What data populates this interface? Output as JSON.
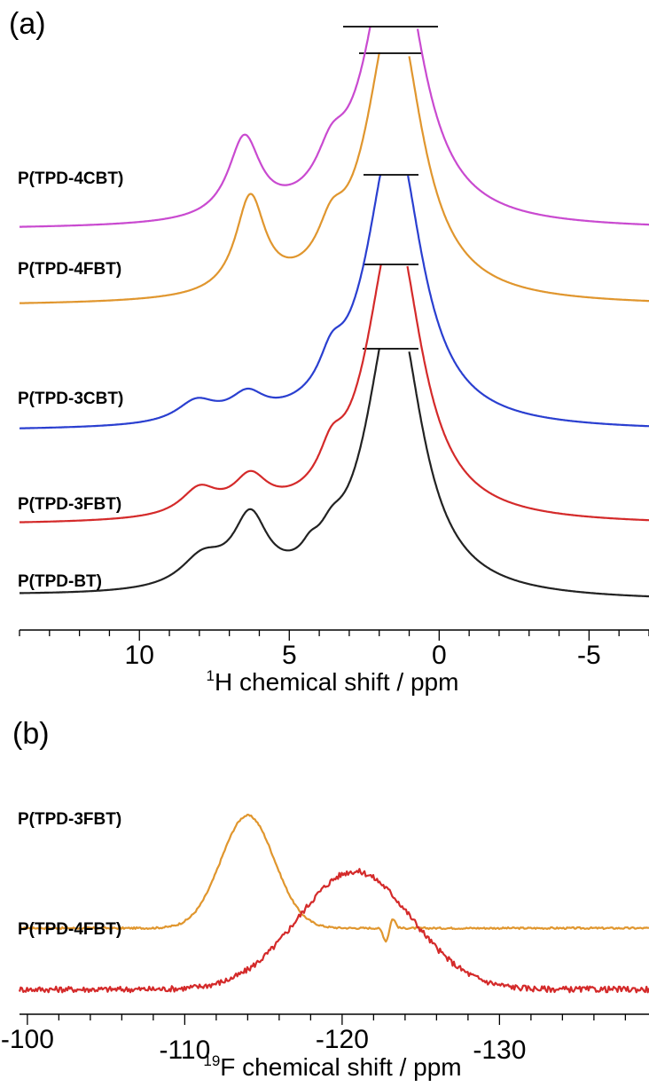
{
  "chart_data": [
    {
      "panel": "(a)",
      "type": "line",
      "xlabel_sup": "1",
      "xlabel": "H chemical shift / ppm",
      "xlim": [
        14.0,
        -7.0
      ],
      "xticks": [
        {
          "v": 10,
          "label": "10"
        },
        {
          "v": 5,
          "label": "5"
        },
        {
          "v": 0,
          "label": "0"
        },
        {
          "v": -5,
          "label": "-5"
        }
      ],
      "minor_step": 1,
      "series": [
        {
          "name": "P(TPD-BT)",
          "color": "#222222",
          "peaks": [
            [
              7.9,
              0.9,
              0.28
            ],
            [
              6.3,
              0.7,
              0.63
            ],
            [
              4.3,
              0.35,
              0.12
            ],
            [
              3.6,
              0.5,
              0.2
            ],
            [
              1.5,
              1.1,
              2.8
            ]
          ],
          "tail": 0.02
        },
        {
          "name": "P(TPD-3FBT)",
          "color": "#d42a2a",
          "peaks": [
            [
              8.0,
              0.75,
              0.25
            ],
            [
              6.3,
              0.7,
              0.32
            ],
            [
              3.6,
              0.5,
              0.3
            ],
            [
              1.5,
              1.1,
              2.8
            ]
          ],
          "tail": 0.0
        },
        {
          "name": "P(TPD-3CBT)",
          "color": "#2a3fd0",
          "peaks": [
            [
              8.1,
              0.8,
              0.2
            ],
            [
              6.4,
              0.7,
              0.22
            ],
            [
              3.6,
              0.5,
              0.3
            ],
            [
              1.5,
              1.1,
              2.8
            ]
          ],
          "tail": 0.0
        },
        {
          "name": "P(TPD-4FBT)",
          "color": "#e0962e",
          "peaks": [
            [
              6.3,
              0.6,
              0.9
            ],
            [
              3.6,
              0.55,
              0.35
            ],
            [
              1.5,
              1.1,
              2.8
            ]
          ],
          "tail": 0.0
        },
        {
          "name": "P(TPD-4CBT)",
          "color": "#c94ad0",
          "peaks": [
            [
              6.5,
              0.65,
              0.75
            ],
            [
              3.6,
              0.6,
              0.35
            ],
            [
              1.5,
              1.1,
              2.8
            ]
          ],
          "tail": 0.0
        }
      ]
    },
    {
      "panel": "(b)",
      "type": "line",
      "xlabel_sup": "19",
      "xlabel": "F chemical shift / ppm",
      "xlim": [
        -99.5,
        -139.5
      ],
      "xticks": [
        {
          "v": -100,
          "label": "-100"
        },
        {
          "v": -110,
          "label": "-110"
        },
        {
          "v": -120,
          "label": "-120"
        },
        {
          "v": -130,
          "label": "-130"
        }
      ],
      "minor_step": 2,
      "series": [
        {
          "name": "P(TPD-3FBT)",
          "color": "#e0962e",
          "peaks": [
            [
              -114.0,
              1.7,
              1.0
            ]
          ],
          "noise": 0.008,
          "dip": -122.8
        },
        {
          "name": "P(TPD-4FBT)",
          "color": "#d42a2a",
          "peaks": [
            [
              -120.8,
              3.6,
              1.0
            ]
          ],
          "noise": 0.025
        }
      ]
    }
  ]
}
